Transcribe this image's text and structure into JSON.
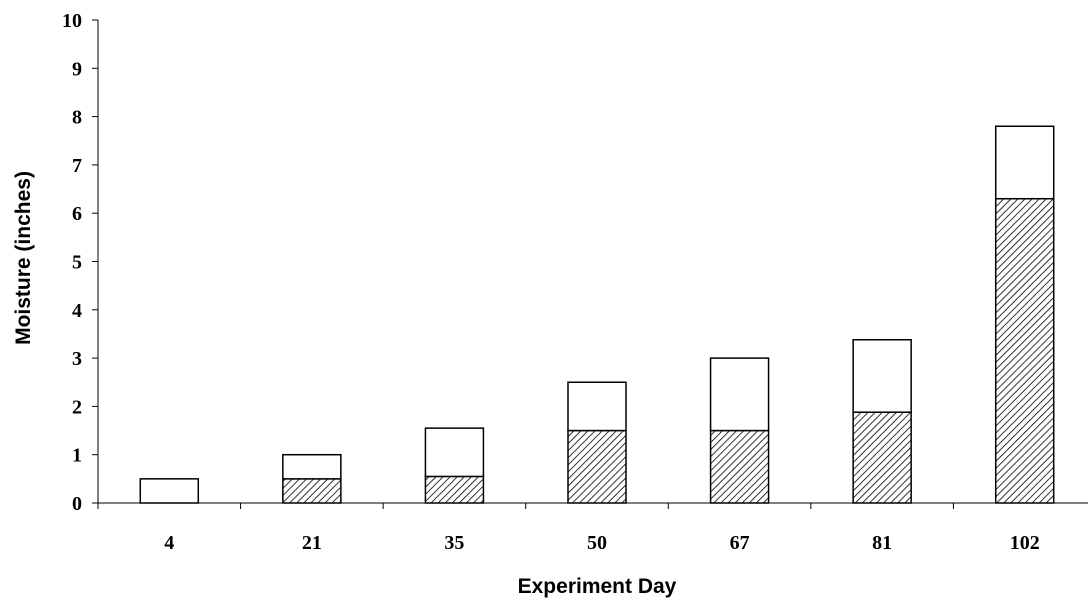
{
  "chart_data": {
    "type": "bar",
    "stacked": true,
    "title": "",
    "xlabel": "Experiment Day",
    "ylabel": "Moisture (inches)",
    "categories": [
      "4",
      "21",
      "35",
      "50",
      "67",
      "81",
      "102"
    ],
    "ylim": [
      0,
      10
    ],
    "yticks": [
      "0",
      "1",
      "2",
      "3",
      "4",
      "5",
      "6",
      "7",
      "8",
      "9",
      "10"
    ],
    "grid": false,
    "legend": "none",
    "series": [
      {
        "values": [
          0,
          0.5,
          0.55,
          1.5,
          1.5,
          1.88,
          6.3
        ],
        "fill": "hatched",
        "color": "#000000"
      },
      {
        "values": [
          0.5,
          0.5,
          1.0,
          1.0,
          1.5,
          1.5,
          1.5
        ],
        "fill": "#ffffff",
        "color": "#000000"
      }
    ]
  }
}
